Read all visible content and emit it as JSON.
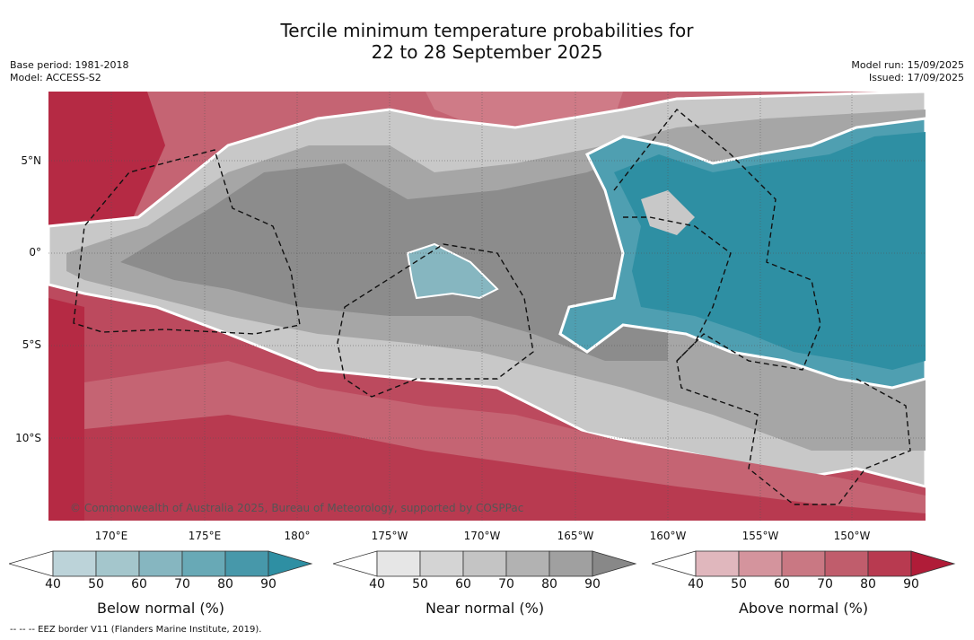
{
  "title_line1": "Tercile minimum temperature probabilities for",
  "title_line2": "22 to 28 September 2025",
  "base_period": "Base period: 1981-2018",
  "model": "Model: ACCESS-S2",
  "model_run": "Model run: 15/09/2025",
  "issued": "Issued: 17/09/2025",
  "credit": "© Commonwealth of Australia 2025, Bureau of Meteorology, supported by COSPPac",
  "footer": "--  --  -- EEZ border V11 (Flanders Marine Institute, 2019).",
  "lat_labels": [
    "5°N",
    "0°",
    "5°S",
    "10°S"
  ],
  "lon_labels": [
    "170°E",
    "175°E",
    "180°",
    "175°W",
    "170°W",
    "165°W",
    "160°W",
    "155°W",
    "150°W"
  ],
  "colorbars": [
    {
      "label": "Below normal (%)",
      "ticks": [
        "40",
        "50",
        "60",
        "70",
        "80",
        "90"
      ],
      "colors": [
        "#bcd3d9",
        "#a4c6cc",
        "#86b6c0",
        "#68a9b6",
        "#4798aa",
        "#2e8fa3"
      ]
    },
    {
      "label": "Near normal (%)",
      "ticks": [
        "40",
        "50",
        "60",
        "70",
        "80",
        "90"
      ],
      "colors": [
        "#e6e6e6",
        "#d4d4d4",
        "#c4c4c4",
        "#b2b2b2",
        "#a0a0a0",
        "#888888"
      ]
    },
    {
      "label": "Above normal (%)",
      "ticks": [
        "40",
        "50",
        "60",
        "70",
        "80",
        "90"
      ],
      "colors": [
        "#e0b7bd",
        "#d4949d",
        "#c97883",
        "#c05d6c",
        "#b83a50",
        "#b01c38"
      ]
    }
  ]
}
